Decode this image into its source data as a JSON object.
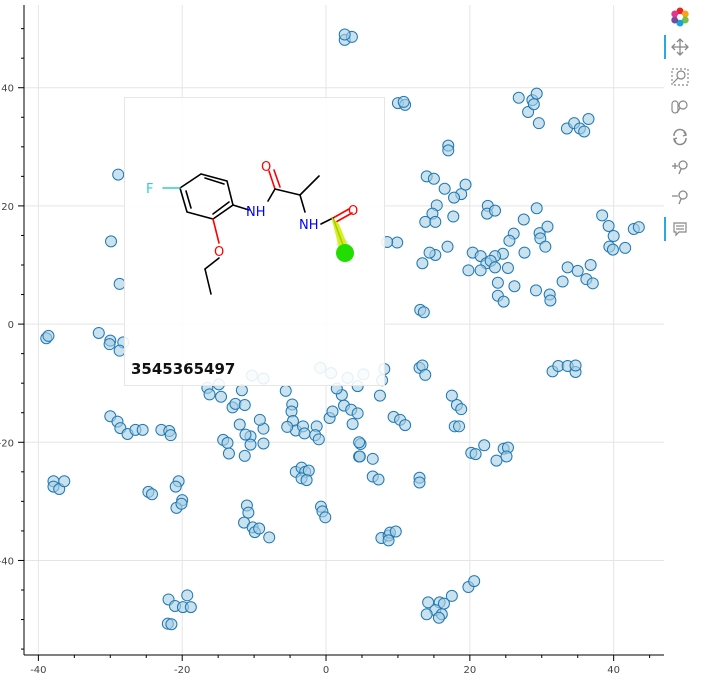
{
  "toolbar": {
    "tools": [
      {
        "icon": "bokeh-logo-icon",
        "active": false
      },
      {
        "icon": "pan-icon",
        "active": true
      },
      {
        "icon": "box-zoom-icon",
        "active": false
      },
      {
        "icon": "wheel-zoom-icon",
        "active": false
      },
      {
        "icon": "reset-icon",
        "active": false
      },
      {
        "icon": "zoom-in-icon",
        "active": false
      },
      {
        "icon": "zoom-out-icon",
        "active": false
      },
      {
        "icon": "hover-icon",
        "active": true
      }
    ]
  },
  "tooltip": {
    "id_text": "3545365497",
    "atom_labels": {
      "fluorine": "F",
      "oxygen_ether": "O",
      "nh_amide1": "NH",
      "oxygen_carbonyl1": "O",
      "nh_amide2": "NH",
      "oxygen_carbonyl2": "O"
    },
    "colors": {
      "fluorine": "#33cccc",
      "oxygen": "#ff0000",
      "nitrogen": "#0000ff",
      "highlight": "#ccee00",
      "highlight_dot": "#22dd00"
    }
  },
  "chart_data": {
    "type": "scatter",
    "title": "",
    "xlabel": "",
    "ylabel": "",
    "xlim": [
      -42,
      47
    ],
    "ylim": [
      -56,
      54
    ],
    "xticks": [
      -40,
      -20,
      0,
      20,
      40
    ],
    "yticks": [
      40,
      20,
      0,
      -20,
      -40
    ],
    "xtick_labels": [
      "-40",
      "-20",
      "0",
      "20",
      "40"
    ],
    "ytick_labels": [
      "40",
      "20",
      "0",
      "-20",
      "-40"
    ],
    "grid": true,
    "marker": {
      "fill": "#a6cee3",
      "fill_opacity": 0.6,
      "stroke": "#1f78b4"
    },
    "points": [
      [
        2.6,
        48.1
      ],
      [
        3.6,
        48.6
      ],
      [
        2.6,
        49.0
      ],
      [
        10.0,
        37.4
      ],
      [
        11.0,
        37.1
      ],
      [
        10.8,
        37.6
      ],
      [
        26.8,
        38.3
      ],
      [
        28.7,
        37.9
      ],
      [
        28.1,
        35.9
      ],
      [
        28.9,
        37.2
      ],
      [
        29.3,
        39.0
      ],
      [
        29.6,
        34.0
      ],
      [
        33.5,
        33.1
      ],
      [
        34.5,
        34.0
      ],
      [
        35.3,
        33.1
      ],
      [
        35.9,
        32.6
      ],
      [
        36.5,
        34.7
      ],
      [
        17.0,
        30.2
      ],
      [
        17.0,
        29.4
      ],
      [
        14.0,
        25.0
      ],
      [
        15.0,
        24.6
      ],
      [
        16.5,
        22.9
      ],
      [
        18.8,
        22.0
      ],
      [
        19.4,
        23.6
      ],
      [
        17.8,
        21.4
      ],
      [
        15.4,
        20.1
      ],
      [
        14.8,
        18.7
      ],
      [
        13.8,
        17.3
      ],
      [
        15.2,
        17.3
      ],
      [
        17.7,
        18.2
      ],
      [
        22.5,
        20.0
      ],
      [
        22.4,
        18.7
      ],
      [
        23.5,
        19.2
      ],
      [
        27.5,
        17.7
      ],
      [
        29.3,
        19.6
      ],
      [
        38.4,
        18.4
      ],
      [
        39.3,
        16.6
      ],
      [
        40.0,
        14.9
      ],
      [
        39.4,
        13.1
      ],
      [
        39.9,
        12.6
      ],
      [
        41.6,
        12.9
      ],
      [
        42.8,
        16.1
      ],
      [
        43.5,
        16.4
      ],
      [
        29.7,
        15.4
      ],
      [
        29.8,
        14.5
      ],
      [
        30.8,
        16.5
      ],
      [
        30.5,
        13.1
      ],
      [
        26.1,
        15.3
      ],
      [
        25.5,
        14.1
      ],
      [
        24.6,
        11.9
      ],
      [
        23.5,
        11.5
      ],
      [
        20.4,
        12.1
      ],
      [
        21.5,
        11.5
      ],
      [
        22.3,
        10.3
      ],
      [
        22.9,
        10.7
      ],
      [
        19.8,
        9.1
      ],
      [
        21.5,
        9.1
      ],
      [
        23.5,
        9.6
      ],
      [
        25.3,
        9.5
      ],
      [
        27.6,
        12.1
      ],
      [
        16.9,
        13.1
      ],
      [
        15.2,
        11.7
      ],
      [
        14.4,
        12.1
      ],
      [
        13.4,
        10.3
      ],
      [
        9.9,
        13.8
      ],
      [
        8.5,
        13.9
      ],
      [
        23.9,
        7.0
      ],
      [
        23.9,
        4.8
      ],
      [
        24.7,
        3.8
      ],
      [
        26.2,
        6.4
      ],
      [
        29.2,
        5.7
      ],
      [
        31.1,
        5.0
      ],
      [
        31.2,
        4.0
      ],
      [
        32.9,
        7.2
      ],
      [
        33.6,
        9.6
      ],
      [
        35.0,
        9.0
      ],
      [
        36.2,
        7.6
      ],
      [
        37.1,
        6.9
      ],
      [
        36.8,
        10.0
      ],
      [
        13.1,
        2.4
      ],
      [
        13.6,
        2.0
      ],
      [
        13.0,
        -7.4
      ],
      [
        13.4,
        -7.0
      ],
      [
        13.8,
        -8.6
      ],
      [
        8.1,
        -7.6
      ],
      [
        7.8,
        -9.5
      ],
      [
        31.5,
        -8.0
      ],
      [
        32.3,
        -7.1
      ],
      [
        33.6,
        -7.1
      ],
      [
        34.7,
        -8.1
      ],
      [
        34.7,
        -7.0
      ],
      [
        17.5,
        -12.1
      ],
      [
        18.2,
        -13.7
      ],
      [
        18.8,
        -14.4
      ],
      [
        17.9,
        -17.3
      ],
      [
        18.5,
        -17.3
      ],
      [
        9.4,
        -15.7
      ],
      [
        10.3,
        -16.2
      ],
      [
        11.0,
        -17.1
      ],
      [
        7.5,
        -12.1
      ],
      [
        20.2,
        -21.8
      ],
      [
        20.8,
        -22.0
      ],
      [
        22.0,
        -20.5
      ],
      [
        24.7,
        -21.1
      ],
      [
        25.3,
        -20.9
      ],
      [
        25.1,
        -22.4
      ],
      [
        23.7,
        -23.1
      ],
      [
        6.5,
        -22.8
      ],
      [
        4.6,
        -22.4
      ],
      [
        4.8,
        -20.3
      ],
      [
        6.5,
        -25.8
      ],
      [
        7.3,
        -26.3
      ],
      [
        13.0,
        -26.0
      ],
      [
        13.0,
        -26.8
      ],
      [
        7.7,
        -36.2
      ],
      [
        8.7,
        -35.8
      ],
      [
        8.9,
        -35.3
      ],
      [
        9.7,
        -35.1
      ],
      [
        8.7,
        -36.6
      ],
      [
        19.8,
        -44.5
      ],
      [
        20.6,
        -43.5
      ],
      [
        17.5,
        -46.0
      ],
      [
        15.8,
        -47.1
      ],
      [
        16.4,
        -47.3
      ],
      [
        14.2,
        -47.1
      ],
      [
        15.2,
        -48.4
      ],
      [
        14.0,
        -49.1
      ],
      [
        16.1,
        -49.1
      ],
      [
        15.7,
        -49.7
      ],
      [
        -38.9,
        -2.4
      ],
      [
        -38.6,
        -2.0
      ],
      [
        -31.6,
        -1.5
      ],
      [
        -30.0,
        -2.8
      ],
      [
        -30.1,
        -3.4
      ],
      [
        -28.2,
        -3.1
      ],
      [
        -28.7,
        -4.5
      ],
      [
        -37.9,
        -26.6
      ],
      [
        -37.9,
        -27.5
      ],
      [
        -37.1,
        -27.9
      ],
      [
        -36.4,
        -26.6
      ],
      [
        -30.0,
        -15.6
      ],
      [
        -29.0,
        -16.5
      ],
      [
        -28.6,
        -17.6
      ],
      [
        -27.6,
        -18.6
      ],
      [
        -26.5,
        -17.9
      ],
      [
        -25.5,
        -17.9
      ],
      [
        -22.9,
        -17.9
      ],
      [
        -21.8,
        -18.1
      ],
      [
        -21.6,
        -18.8
      ],
      [
        -24.7,
        -28.4
      ],
      [
        -24.2,
        -28.8
      ],
      [
        -20.5,
        -26.6
      ],
      [
        -20.9,
        -27.5
      ],
      [
        -20.0,
        -29.8
      ],
      [
        -20.8,
        -31.1
      ],
      [
        -20.1,
        -30.4
      ],
      [
        -29.9,
        14.0
      ],
      [
        -28.7,
        6.8
      ],
      [
        -28.9,
        25.3
      ],
      [
        -21.9,
        -46.6
      ],
      [
        -21.0,
        -47.7
      ],
      [
        -19.9,
        -47.9
      ],
      [
        -19.3,
        -45.9
      ],
      [
        -18.8,
        -47.9
      ],
      [
        -22.0,
        -50.7
      ],
      [
        -21.5,
        -50.8
      ],
      [
        -16.5,
        -10.8
      ],
      [
        -16.2,
        -11.9
      ],
      [
        -14.9,
        -10.2
      ],
      [
        -14.6,
        -12.3
      ],
      [
        -13.0,
        -14.1
      ],
      [
        -12.6,
        -13.5
      ],
      [
        -11.7,
        -11.2
      ],
      [
        -11.3,
        -13.7
      ],
      [
        -12.0,
        -17.0
      ],
      [
        -10.5,
        -19.0
      ],
      [
        -11.2,
        -18.7
      ],
      [
        -11.3,
        -22.3
      ],
      [
        -14.3,
        -19.6
      ],
      [
        -13.7,
        -20.1
      ],
      [
        -13.5,
        -21.9
      ],
      [
        -10.5,
        -20.4
      ],
      [
        -8.7,
        -20.2
      ],
      [
        -8.7,
        -17.7
      ],
      [
        -9.2,
        -16.2
      ],
      [
        -4.7,
        -13.6
      ],
      [
        -4.8,
        -14.8
      ],
      [
        -4.6,
        -16.4
      ],
      [
        -4.2,
        -18.0
      ],
      [
        -3.2,
        -17.3
      ],
      [
        -3.0,
        -18.5
      ],
      [
        -1.3,
        -17.3
      ],
      [
        -1.5,
        -18.8
      ],
      [
        -1.0,
        -19.5
      ],
      [
        -5.4,
        -17.4
      ],
      [
        0.5,
        -15.9
      ],
      [
        0.9,
        -14.8
      ],
      [
        2.5,
        -13.8
      ],
      [
        3.5,
        -14.5
      ],
      [
        4.4,
        -15.1
      ],
      [
        2.2,
        -12.0
      ],
      [
        3.7,
        -16.9
      ],
      [
        -4.2,
        -25.0
      ],
      [
        -3.4,
        -24.3
      ],
      [
        -2.9,
        -25.0
      ],
      [
        -2.4,
        -24.8
      ],
      [
        -3.4,
        -26.1
      ],
      [
        -2.7,
        -26.4
      ],
      [
        -0.7,
        -30.9
      ],
      [
        -0.5,
        -31.7
      ],
      [
        -0.1,
        -32.7
      ],
      [
        4.6,
        -20.0
      ],
      [
        4.7,
        -22.4
      ],
      [
        -11.0,
        -30.7
      ],
      [
        -10.8,
        -31.9
      ],
      [
        -11.4,
        -33.6
      ],
      [
        -10.2,
        -34.4
      ],
      [
        -9.9,
        -35.2
      ],
      [
        -9.3,
        -34.6
      ],
      [
        -7.9,
        -36.1
      ],
      [
        -10.3,
        -8.7
      ],
      [
        -8.7,
        -9.2
      ],
      [
        -5.6,
        -11.3
      ],
      [
        -0.8,
        -7.4
      ],
      [
        0.7,
        -8.3
      ],
      [
        1.5,
        -10.9
      ],
      [
        3.0,
        -9.1
      ],
      [
        4.4,
        -10.5
      ],
      [
        5.2,
        -8.5
      ]
    ],
    "hover_point": [
      2.3,
      13.5
    ]
  }
}
